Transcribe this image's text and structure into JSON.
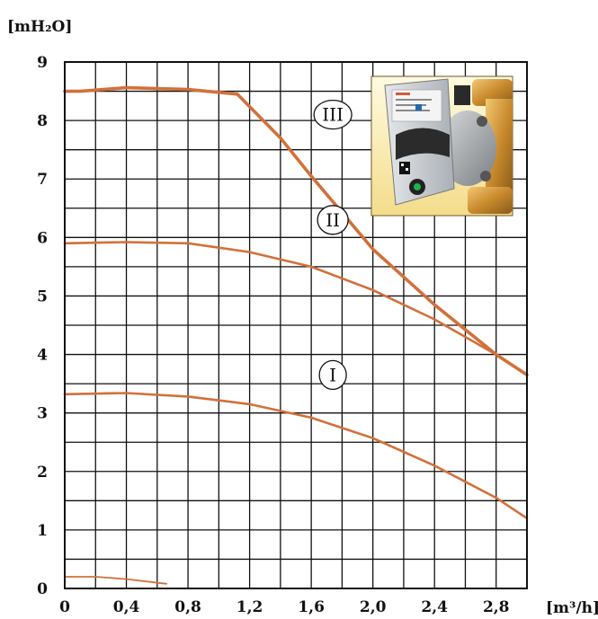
{
  "chart_data": {
    "type": "line",
    "ylabel": "[mH₂O]",
    "xlabel": "[m³/h]",
    "xlim": [
      0,
      3.0
    ],
    "ylim": [
      0,
      9
    ],
    "grid": true,
    "x_ticks": [
      "0",
      "0,4",
      "0,8",
      "1,2",
      "1,6",
      "2,0",
      "2,4",
      "2,8"
    ],
    "y_ticks": [
      "0",
      "1",
      "2",
      "3",
      "4",
      "5",
      "6",
      "7",
      "8",
      "9"
    ],
    "series": [
      {
        "name": "III",
        "color": "#d2703a",
        "points": [
          [
            0,
            8.5
          ],
          [
            0.1,
            8.5
          ],
          [
            0.4,
            8.56
          ],
          [
            0.8,
            8.53
          ],
          [
            1.12,
            8.45
          ],
          [
            1.4,
            7.7
          ],
          [
            1.6,
            7.05
          ],
          [
            2.0,
            5.8
          ],
          [
            2.4,
            4.85
          ],
          [
            2.8,
            4.0
          ],
          [
            3.0,
            3.65
          ]
        ]
      },
      {
        "name": "II",
        "color": "#d2703a",
        "points": [
          [
            0,
            5.9
          ],
          [
            0.4,
            5.92
          ],
          [
            0.8,
            5.9
          ],
          [
            1.2,
            5.75
          ],
          [
            1.6,
            5.5
          ],
          [
            2.0,
            5.1
          ],
          [
            2.4,
            4.6
          ],
          [
            2.8,
            4.0
          ],
          [
            3.0,
            3.65
          ]
        ]
      },
      {
        "name": "I",
        "color": "#d2703a",
        "points": [
          [
            0,
            3.32
          ],
          [
            0.4,
            3.34
          ],
          [
            0.8,
            3.28
          ],
          [
            1.2,
            3.15
          ],
          [
            1.6,
            2.92
          ],
          [
            2.0,
            2.57
          ],
          [
            2.4,
            2.1
          ],
          [
            2.8,
            1.55
          ],
          [
            3.0,
            1.2
          ]
        ]
      },
      {
        "name": "",
        "color": "#d2703a",
        "points": [
          [
            0,
            0.2
          ],
          [
            0.2,
            0.2
          ],
          [
            0.4,
            0.16
          ],
          [
            0.66,
            0.08
          ]
        ]
      }
    ],
    "curve_labels": [
      {
        "text": "III",
        "x": 1.74,
        "y": 8.1
      },
      {
        "text": "II",
        "x": 1.74,
        "y": 6.3
      },
      {
        "text": "I",
        "x": 1.74,
        "y": 3.65
      }
    ]
  }
}
